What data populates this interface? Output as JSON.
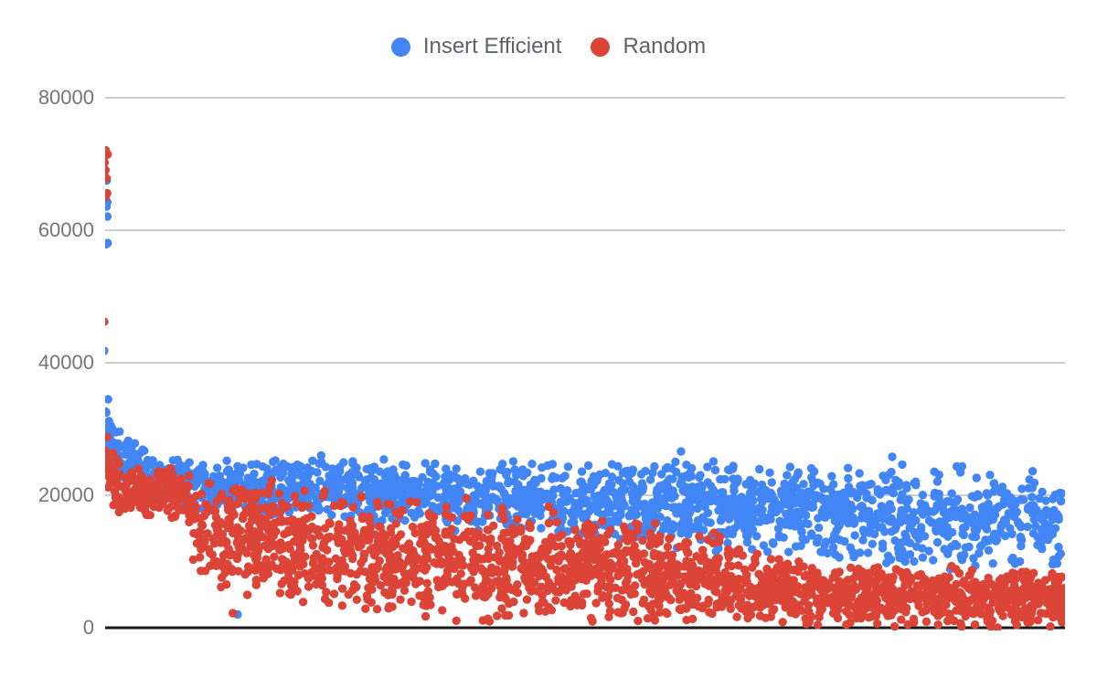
{
  "chart_data": {
    "type": "scatter",
    "title": "",
    "xlabel": "",
    "ylabel": "",
    "x_axis_labels_visible": false,
    "ylim": [
      0,
      80000
    ],
    "yticks": [
      0,
      20000,
      40000,
      60000,
      80000
    ],
    "ytick_labels": [
      "0",
      "20000",
      "40000",
      "60000",
      "80000"
    ],
    "grid": "horizontal",
    "legend_position": "top-center",
    "seed": 7,
    "point_radius_px": 4.7,
    "colors": {
      "gridline": "#cccccc",
      "zero_axis": "#1a1a1a",
      "tick_label": "#757575",
      "legend_text": "#5f6368"
    },
    "series": [
      {
        "name": "Insert Efficient",
        "slug": "insert-efficient",
        "color": "#4285F4",
        "marker": "circle",
        "point_count": 2000,
        "description": "Dense band starting ~23500-34500, slowly declining; ~7500-25000 at right edge, core ~12000-22000",
        "envelope": [
          [
            0.0,
            23500,
            34500
          ],
          [
            0.008,
            21500,
            31500
          ],
          [
            0.03,
            19000,
            28500
          ],
          [
            0.06,
            18000,
            26500
          ],
          [
            0.12,
            17000,
            26000
          ],
          [
            0.3,
            15000,
            25500
          ],
          [
            0.5,
            13000,
            25500
          ],
          [
            0.7,
            10500,
            25500
          ],
          [
            0.85,
            8500,
            25200
          ],
          [
            1.0,
            7500,
            25000
          ]
        ],
        "spike_cluster": {
          "x_min": -0.002,
          "x_max": 0.003,
          "y_min": 57800,
          "y_max": 68500,
          "count": 9
        },
        "outliers": [
          [
            -0.001,
            41800
          ],
          [
            0.003,
            34500
          ],
          [
            0.004,
            31200
          ],
          [
            0.006,
            30500
          ],
          [
            0.138,
            2000
          ],
          [
            0.225,
            26000
          ],
          [
            0.6,
            26600
          ],
          [
            0.82,
            25800
          ]
        ]
      },
      {
        "name": "Random",
        "slug": "random",
        "color": "#DB4437",
        "marker": "circle",
        "point_count": 2300,
        "description": "Tight band ~16000-25000 until ~9% of x-range, abrupt widening/drop, declining spread reaching 0 from ~31% onward; ~0-8800 at right edge",
        "envelope": [
          [
            0.0,
            21500,
            29000
          ],
          [
            0.01,
            17000,
            26000
          ],
          [
            0.04,
            16500,
            25000
          ],
          [
            0.085,
            16000,
            24500
          ],
          [
            0.092,
            6000,
            24000
          ],
          [
            0.15,
            4000,
            23000
          ],
          [
            0.25,
            1500,
            21500
          ],
          [
            0.32,
            200,
            20500
          ],
          [
            0.5,
            0,
            18000
          ],
          [
            0.62,
            0,
            15500
          ],
          [
            0.68,
            0,
            11500
          ],
          [
            0.8,
            0,
            10000
          ],
          [
            1.0,
            0,
            8800
          ]
        ],
        "spike_cluster": {
          "x_min": -0.002,
          "x_max": 0.003,
          "y_min": 63500,
          "y_max": 73500,
          "count": 13
        },
        "outliers": [
          [
            -0.001,
            46200
          ],
          [
            0.002,
            28800
          ],
          [
            0.133,
            2200
          ]
        ]
      }
    ]
  },
  "legend": {
    "items": [
      {
        "label": "Insert Efficient",
        "color": "#4285F4"
      },
      {
        "label": "Random",
        "color": "#DB4437"
      }
    ]
  }
}
